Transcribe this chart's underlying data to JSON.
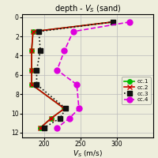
{
  "title": "depth - $V_S$ (sand)",
  "xlabel": "$V_S$ (m/s)",
  "xlim": [
    170,
    350
  ],
  "ylim": [
    12.5,
    -0.3
  ],
  "yticks": [
    0,
    2,
    4,
    6,
    8,
    10,
    12
  ],
  "xticks": [
    200,
    250,
    300
  ],
  "series": [
    {
      "label": "cc.1",
      "color": "#00bb00",
      "marker": "o",
      "linestyle": "-",
      "markersize": 4,
      "linewidth": 1.2,
      "depths": [
        0.5,
        1.5,
        3.5,
        5.5,
        7.0,
        9.5,
        10.5,
        11.5
      ],
      "vs": [
        295,
        185,
        183,
        183,
        183,
        228,
        210,
        195
      ]
    },
    {
      "label": "cc.2",
      "color": "#cc0000",
      "marker": "x",
      "linestyle": "-",
      "markersize": 5,
      "linewidth": 1.2,
      "depths": [
        0.5,
        1.5,
        3.5,
        5.5,
        7.0,
        9.5,
        10.5,
        11.5
      ],
      "vs": [
        295,
        185,
        183,
        183,
        183,
        228,
        210,
        195
      ]
    },
    {
      "label": "cc.3",
      "color": "#111111",
      "marker": "s",
      "linestyle": ":",
      "markersize": 4,
      "linewidth": 1.2,
      "depths": [
        0.5,
        1.5,
        3.5,
        5.5,
        7.0,
        9.5,
        10.5,
        11.5
      ],
      "vs": [
        295,
        193,
        195,
        190,
        190,
        230,
        222,
        200
      ]
    },
    {
      "label": "cc.4",
      "color": "#dd00dd",
      "marker": "o",
      "linestyle": "--",
      "markersize": 5,
      "linewidth": 1.2,
      "depths": [
        0.5,
        1.5,
        3.5,
        5.5,
        7.0,
        9.5,
        10.5,
        11.5
      ],
      "vs": [
        318,
        240,
        228,
        218,
        245,
        248,
        235,
        218
      ]
    }
  ],
  "background_color": "#eeeedc",
  "grid_color": "#bbbbbb",
  "title_fontsize": 7,
  "label_fontsize": 6.5,
  "tick_fontsize": 5.5,
  "legend_fontsize": 5
}
